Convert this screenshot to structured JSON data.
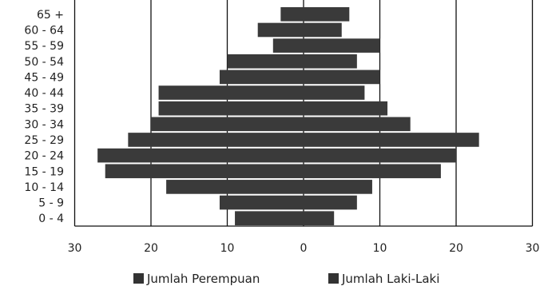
{
  "chart_data": {
    "type": "bar",
    "orientation": "horizontal-population-pyramid",
    "categories": [
      "0 - 4",
      "5 - 9",
      "10 - 14",
      "15 - 19",
      "20 - 24",
      "25 - 29",
      "30 - 34",
      "35 - 39",
      "40 - 44",
      "45 - 49",
      "50 - 54",
      "55 - 59",
      "60 - 64",
      "65 +"
    ],
    "series": [
      {
        "name": "Jumlah Perempuan",
        "side": "left",
        "values": [
          9,
          11,
          18,
          26,
          27,
          23,
          20,
          19,
          19,
          11,
          10,
          4,
          6,
          3
        ]
      },
      {
        "name": "Jumlah Laki-Laki",
        "side": "right",
        "values": [
          4,
          7,
          9,
          18,
          20,
          23,
          14,
          11,
          8,
          10,
          7,
          10,
          5,
          6
        ]
      }
    ],
    "xlim": [
      -30,
      30
    ],
    "x_tick_labels": [
      "30",
      "20",
      "10",
      "0",
      "10",
      "20",
      "30"
    ],
    "grid": "vertical",
    "legend_position": "bottom",
    "colors": {
      "bar": "#3a3a3a",
      "grid": "#111111"
    }
  }
}
